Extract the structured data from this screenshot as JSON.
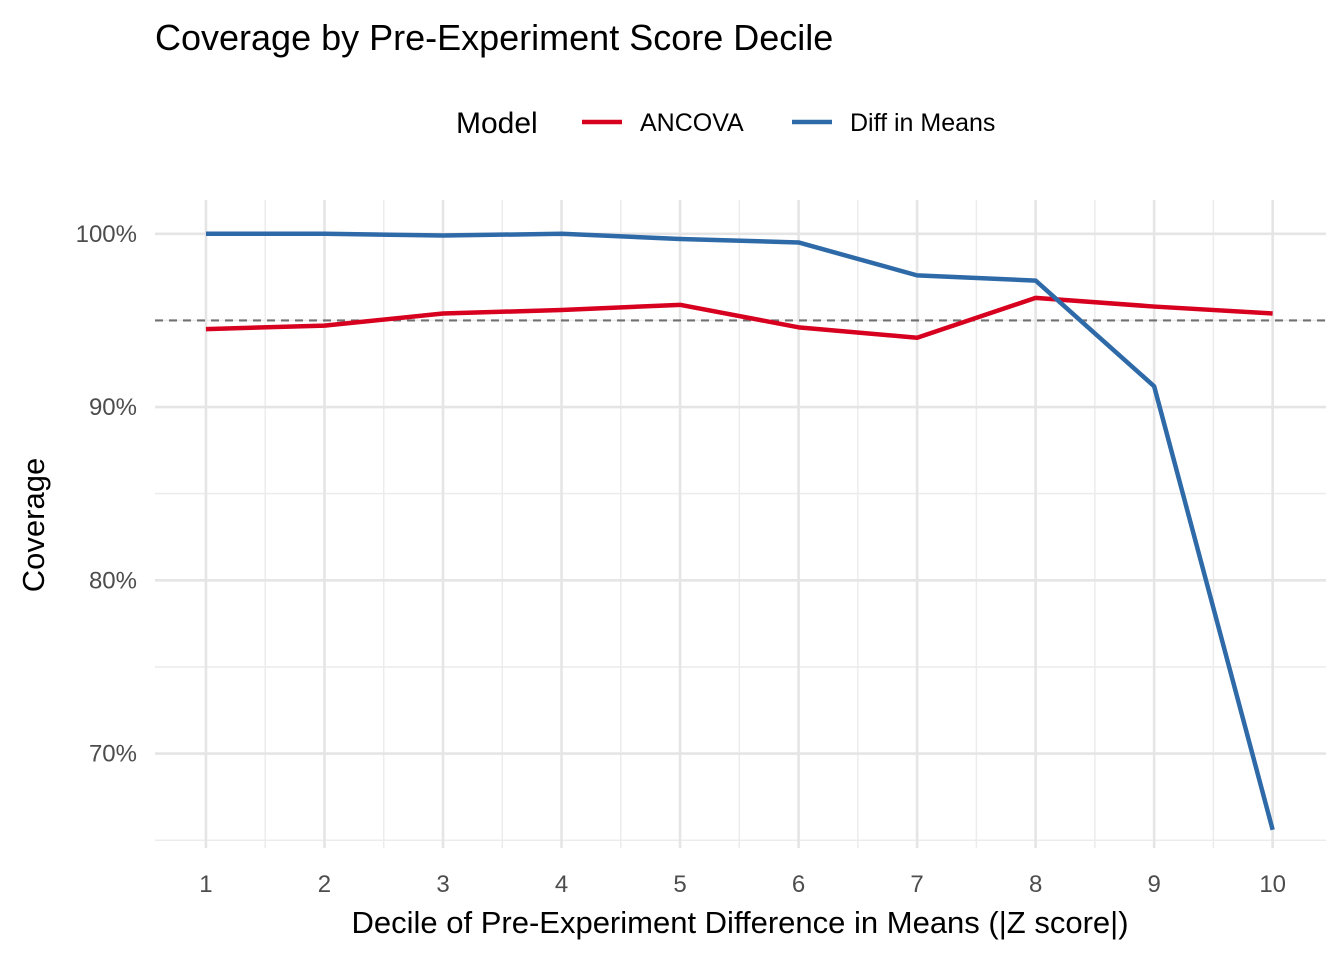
{
  "chart_data": {
    "type": "line",
    "title": "Coverage by Pre-Experiment Score Decile",
    "xlabel": "Decile of Pre-Experiment Difference in Means (|Z score|)",
    "ylabel": "Coverage",
    "legend": {
      "title": "Model",
      "position": "top"
    },
    "x": [
      1,
      2,
      3,
      4,
      5,
      6,
      7,
      8,
      9,
      10
    ],
    "x_tick_labels": [
      "1",
      "2",
      "3",
      "4",
      "5",
      "6",
      "7",
      "8",
      "9",
      "10"
    ],
    "xlim": [
      0.57,
      10.45
    ],
    "ylim": [
      0.6455,
      1.0195
    ],
    "y_ticks": [
      0.7,
      0.8,
      0.9,
      1.0
    ],
    "y_tick_labels": [
      "70%",
      "80%",
      "90%",
      "100%"
    ],
    "reference_line": {
      "y": 0.95,
      "style": "dashed",
      "color": "#707070"
    },
    "grid": true,
    "series": [
      {
        "name": "ANCOVA",
        "color": "#d7001f",
        "values": [
          0.945,
          0.947,
          0.954,
          0.956,
          0.959,
          0.946,
          0.94,
          0.963,
          0.958,
          0.954
        ]
      },
      {
        "name": "Diff in Means",
        "color": "#2f6aa8",
        "values": [
          1.0,
          1.0,
          0.999,
          1.0,
          0.997,
          0.995,
          0.976,
          0.973,
          0.912,
          0.656
        ]
      }
    ]
  }
}
